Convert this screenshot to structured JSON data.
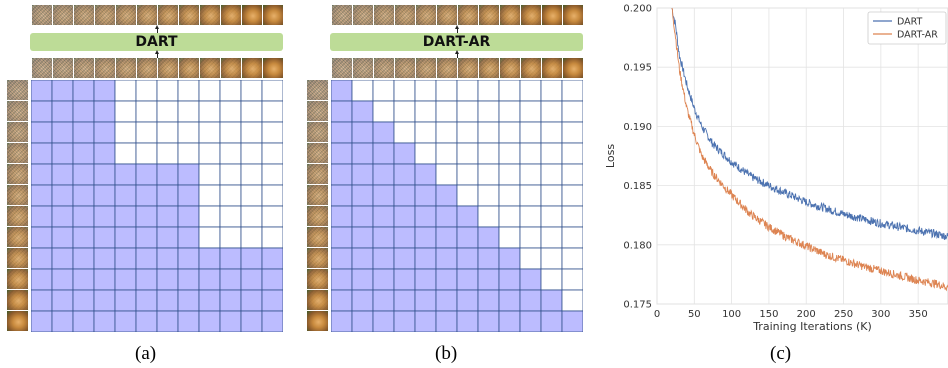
{
  "panel_a": {
    "model_label": "DART",
    "caption": "(a)",
    "grid": {
      "rows": 12,
      "cols": 12,
      "visible_upto": [
        4,
        4,
        4,
        4,
        8,
        8,
        8,
        8,
        12,
        12,
        12,
        12
      ]
    }
  },
  "panel_b": {
    "model_label": "DART-AR",
    "caption": "(b)",
    "grid": {
      "rows": 12,
      "cols": 12,
      "visible_upto": [
        1,
        2,
        3,
        4,
        5,
        6,
        7,
        8,
        9,
        10,
        11,
        12
      ]
    }
  },
  "panel_c": {
    "caption": "(c)"
  },
  "colors": {
    "mask_fill": "#bcbcff",
    "grid_line": "#2f4f8a",
    "dart": "#4c72b0",
    "dart_ar": "#dd8452",
    "bar": "#bddc97"
  },
  "chart_data": {
    "type": "line",
    "xlabel": "Training Iterations (K)",
    "ylabel": "Loss",
    "xlim": [
      0,
      390
    ],
    "ylim": [
      0.175,
      0.2
    ],
    "xticks": [
      0,
      50,
      100,
      150,
      200,
      250,
      300,
      350
    ],
    "yticks": [
      0.175,
      0.18,
      0.185,
      0.19,
      0.195,
      0.2
    ],
    "grid": true,
    "legend": "top-right",
    "series": [
      {
        "name": "DART",
        "color": "#4c72b0",
        "x": [
          20,
          25,
          30,
          40,
          50,
          60,
          75,
          100,
          125,
          150,
          175,
          200,
          225,
          250,
          275,
          300,
          325,
          350,
          375,
          390
        ],
        "y": [
          0.2,
          0.1985,
          0.196,
          0.1935,
          0.1915,
          0.19,
          0.1885,
          0.187,
          0.1858,
          0.185,
          0.1843,
          0.1836,
          0.1831,
          0.1826,
          0.1822,
          0.1818,
          0.1815,
          0.1812,
          0.1809,
          0.1807
        ]
      },
      {
        "name": "DART-AR",
        "color": "#dd8452",
        "x": [
          20,
          25,
          30,
          40,
          50,
          60,
          75,
          100,
          125,
          150,
          175,
          200,
          225,
          250,
          275,
          300,
          325,
          350,
          375,
          390
        ],
        "y": [
          0.2,
          0.1975,
          0.1948,
          0.1915,
          0.1893,
          0.1875,
          0.186,
          0.1842,
          0.1826,
          0.1815,
          0.1806,
          0.1799,
          0.1792,
          0.1787,
          0.1782,
          0.1778,
          0.1774,
          0.177,
          0.1767,
          0.1764
        ]
      }
    ]
  }
}
